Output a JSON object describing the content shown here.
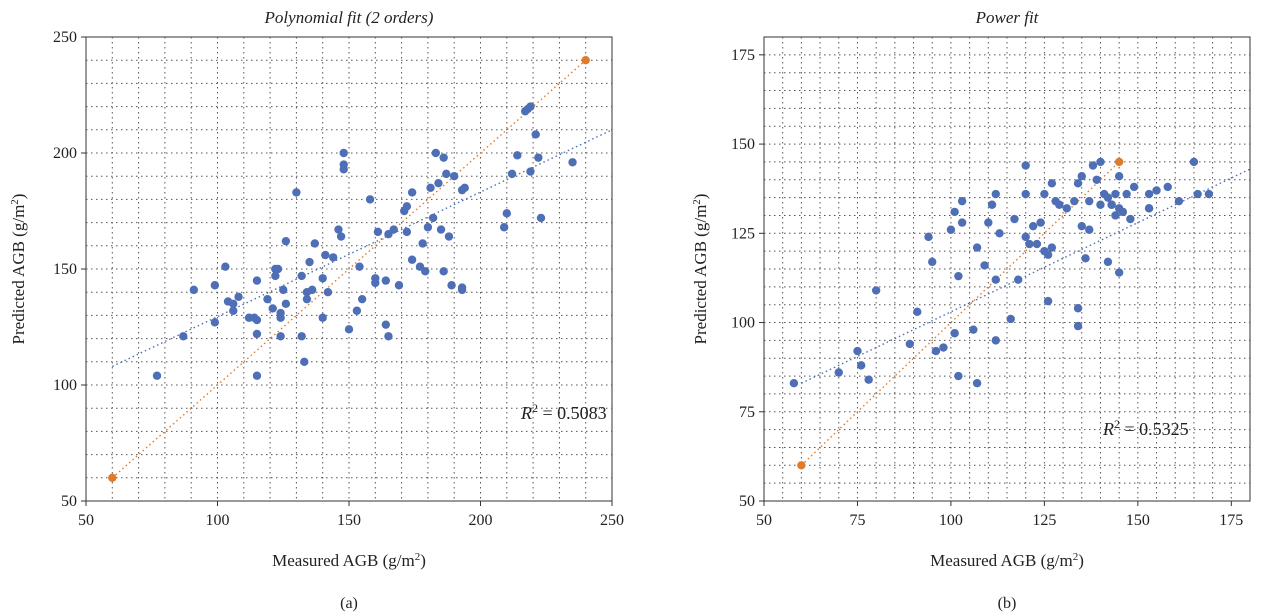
{
  "colors": {
    "points": "#4e6fb5",
    "endpoints": "#e07b2c",
    "grid": "#555555",
    "fit_line": "#4e6fb5",
    "identity_line": "#e07b2c",
    "axes": "#333333"
  },
  "chart_data": [
    {
      "type": "scatter",
      "title": "Polynomial fit (2 orders)",
      "xlabel": "Measured AGB (g/m",
      "ylabel": "Predicted AGB (g/m",
      "label_sup": "2",
      "label_close": ")",
      "caption": "(a)",
      "xlim": [
        50,
        250
      ],
      "ylim": [
        50,
        250
      ],
      "xticks": [
        50,
        100,
        150,
        200,
        250
      ],
      "yticks": [
        50,
        100,
        150,
        200,
        250
      ],
      "grid": true,
      "annotation": {
        "prefix": "R",
        "sup": "2",
        "text": " = 0.5083"
      },
      "identity_line": [
        [
          60,
          60
        ],
        [
          240,
          240
        ]
      ],
      "fit_line": [
        [
          60,
          108
        ],
        [
          250,
          210
        ]
      ],
      "endpoints": [
        [
          60,
          60
        ],
        [
          240,
          240
        ]
      ],
      "points": [
        [
          77,
          104
        ],
        [
          87,
          121
        ],
        [
          91,
          141
        ],
        [
          99,
          127
        ],
        [
          99,
          143
        ],
        [
          103,
          151
        ],
        [
          104,
          136
        ],
        [
          106,
          132
        ],
        [
          106,
          135
        ],
        [
          108,
          138
        ],
        [
          112,
          129
        ],
        [
          114,
          129
        ],
        [
          115,
          104
        ],
        [
          115,
          122
        ],
        [
          115,
          128
        ],
        [
          115,
          145
        ],
        [
          119,
          137
        ],
        [
          121,
          133
        ],
        [
          122,
          147
        ],
        [
          122,
          150
        ],
        [
          123,
          150
        ],
        [
          124,
          129
        ],
        [
          124,
          131
        ],
        [
          124,
          121
        ],
        [
          125,
          141
        ],
        [
          126,
          135
        ],
        [
          126,
          162
        ],
        [
          130,
          183
        ],
        [
          132,
          121
        ],
        [
          132,
          147
        ],
        [
          133,
          110
        ],
        [
          134,
          137
        ],
        [
          134,
          140
        ],
        [
          135,
          153
        ],
        [
          136,
          141
        ],
        [
          137,
          161
        ],
        [
          140,
          129
        ],
        [
          140,
          146
        ],
        [
          141,
          156
        ],
        [
          142,
          140
        ],
        [
          144,
          155
        ],
        [
          146,
          167
        ],
        [
          147,
          164
        ],
        [
          148,
          193
        ],
        [
          148,
          195
        ],
        [
          148,
          200
        ],
        [
          150,
          124
        ],
        [
          153,
          132
        ],
        [
          154,
          151
        ],
        [
          155,
          137
        ],
        [
          158,
          180
        ],
        [
          160,
          144
        ],
        [
          160,
          146
        ],
        [
          161,
          166
        ],
        [
          164,
          126
        ],
        [
          164,
          145
        ],
        [
          165,
          121
        ],
        [
          165,
          165
        ],
        [
          167,
          167
        ],
        [
          169,
          143
        ],
        [
          171,
          175
        ],
        [
          172,
          177
        ],
        [
          172,
          166
        ],
        [
          174,
          183
        ],
        [
          174,
          154
        ],
        [
          177,
          151
        ],
        [
          178,
          161
        ],
        [
          179,
          149
        ],
        [
          180,
          168
        ],
        [
          181,
          185
        ],
        [
          182,
          172
        ],
        [
          183,
          200
        ],
        [
          184,
          187
        ],
        [
          185,
          167
        ],
        [
          186,
          149
        ],
        [
          186,
          198
        ],
        [
          187,
          191
        ],
        [
          188,
          164
        ],
        [
          189,
          143
        ],
        [
          190,
          190
        ],
        [
          193,
          142
        ],
        [
          193,
          141
        ],
        [
          193,
          184
        ],
        [
          194,
          185
        ],
        [
          209,
          168
        ],
        [
          210,
          174
        ],
        [
          212,
          191
        ],
        [
          214,
          199
        ],
        [
          217,
          218
        ],
        [
          218,
          219
        ],
        [
          219,
          220
        ],
        [
          219,
          192
        ],
        [
          221,
          208
        ],
        [
          222,
          198
        ],
        [
          223,
          172
        ],
        [
          235,
          196
        ]
      ]
    },
    {
      "type": "scatter",
      "title": "Power fit",
      "xlabel": "Measured AGB (g/m",
      "ylabel": "Predicted AGB (g/m",
      "label_sup": "2",
      "label_close": ")",
      "caption": "(b)",
      "xlim": [
        50,
        180
      ],
      "ylim": [
        50,
        180
      ],
      "xticks": [
        50,
        75,
        100,
        125,
        150,
        175
      ],
      "yticks": [
        50,
        75,
        100,
        125,
        150,
        175
      ],
      "grid": true,
      "annotation": {
        "prefix": "R",
        "sup": "2",
        "text": " = 0.5325"
      },
      "identity_line": [
        [
          60,
          60
        ],
        [
          145,
          145
        ]
      ],
      "fit_line": [
        [
          60,
          83
        ],
        [
          180,
          143
        ]
      ],
      "endpoints": [
        [
          60,
          60
        ],
        [
          145,
          145
        ]
      ],
      "points": [
        [
          58,
          83
        ],
        [
          70,
          86
        ],
        [
          75,
          92
        ],
        [
          76,
          88
        ],
        [
          78,
          84
        ],
        [
          80,
          109
        ],
        [
          89,
          94
        ],
        [
          91,
          103
        ],
        [
          94,
          124
        ],
        [
          95,
          117
        ],
        [
          96,
          92
        ],
        [
          98,
          93
        ],
        [
          100,
          126
        ],
        [
          101,
          97
        ],
        [
          101,
          131
        ],
        [
          102,
          85
        ],
        [
          102,
          113
        ],
        [
          103,
          134
        ],
        [
          103,
          128
        ],
        [
          106,
          98
        ],
        [
          107,
          83
        ],
        [
          107,
          121
        ],
        [
          109,
          116
        ],
        [
          110,
          128
        ],
        [
          111,
          133
        ],
        [
          112,
          112
        ],
        [
          112,
          95
        ],
        [
          112,
          136
        ],
        [
          113,
          125
        ],
        [
          116,
          101
        ],
        [
          117,
          129
        ],
        [
          118,
          112
        ],
        [
          120,
          136
        ],
        [
          120,
          144
        ],
        [
          120,
          124
        ],
        [
          121,
          122
        ],
        [
          122,
          127
        ],
        [
          123,
          122
        ],
        [
          124,
          128
        ],
        [
          125,
          120
        ],
        [
          125,
          136
        ],
        [
          126,
          119
        ],
        [
          126,
          106
        ],
        [
          127,
          121
        ],
        [
          127,
          139
        ],
        [
          128,
          134
        ],
        [
          129,
          133
        ],
        [
          131,
          132
        ],
        [
          133,
          134
        ],
        [
          134,
          139
        ],
        [
          134,
          104
        ],
        [
          134,
          99
        ],
        [
          135,
          127
        ],
        [
          135,
          141
        ],
        [
          136,
          118
        ],
        [
          137,
          134
        ],
        [
          137,
          126
        ],
        [
          138,
          144
        ],
        [
          139,
          140
        ],
        [
          140,
          133
        ],
        [
          140,
          145
        ],
        [
          141,
          136
        ],
        [
          142,
          117
        ],
        [
          142,
          135
        ],
        [
          143,
          133
        ],
        [
          143,
          133
        ],
        [
          144,
          130
        ],
        [
          144,
          136
        ],
        [
          145,
          141
        ],
        [
          145,
          132
        ],
        [
          145,
          114
        ],
        [
          146,
          131
        ],
        [
          147,
          136
        ],
        [
          148,
          129
        ],
        [
          149,
          138
        ],
        [
          153,
          132
        ],
        [
          153,
          136
        ],
        [
          153,
          132
        ],
        [
          155,
          137
        ],
        [
          158,
          138
        ],
        [
          161,
          134
        ],
        [
          165,
          145
        ],
        [
          166,
          136
        ],
        [
          169,
          136
        ]
      ]
    }
  ]
}
